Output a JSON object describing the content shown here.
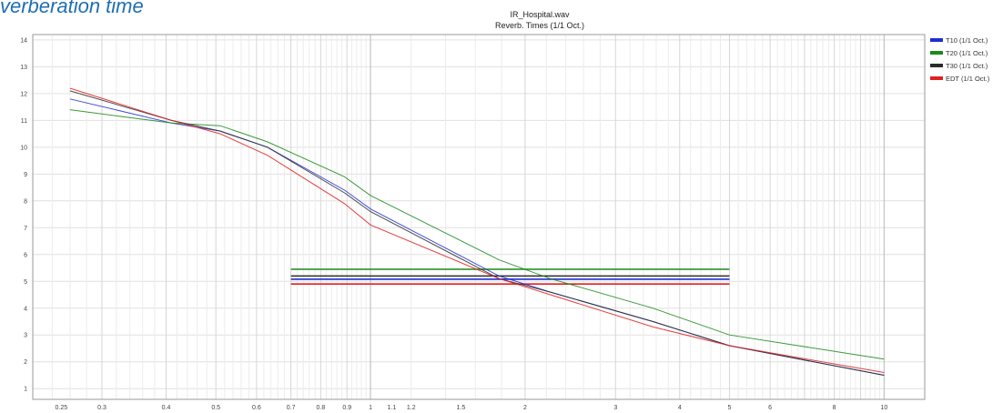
{
  "heading": "verberation time",
  "chart_data": {
    "type": "line",
    "title": "IR_Hospital.wav",
    "subtitle": "Reverb. Times (1/1 Oct.)",
    "xscale": "log",
    "xlabel": "",
    "ylabel": "",
    "xlim": [
      0.22,
      12
    ],
    "ylim": [
      0.6,
      14.2
    ],
    "yticks": [
      1,
      2,
      3,
      4,
      5,
      6,
      7,
      8,
      9,
      10,
      11,
      12,
      13,
      14
    ],
    "xtick_labels": [
      {
        "v": 0.25,
        "t": "0.25"
      },
      {
        "v": 0.3,
        "t": "0.3"
      },
      {
        "v": 0.4,
        "t": "0.4"
      },
      {
        "v": 0.5,
        "t": "0.5"
      },
      {
        "v": 0.6,
        "t": "0.6"
      },
      {
        "v": 0.7,
        "t": "0.7"
      },
      {
        "v": 0.8,
        "t": "0.8"
      },
      {
        "v": 0.9,
        "t": "0.9"
      },
      {
        "v": 1,
        "t": "1"
      },
      {
        "v": 1.1,
        "t": "1.1"
      },
      {
        "v": 1.2,
        "t": "1.2"
      },
      {
        "v": 1.5,
        "t": "1.5"
      },
      {
        "v": 2,
        "t": "2"
      },
      {
        "v": 3,
        "t": "3"
      },
      {
        "v": 4,
        "t": "4"
      },
      {
        "v": 5,
        "t": "5"
      },
      {
        "v": 6,
        "t": "6"
      },
      {
        "v": 8,
        "t": "8"
      },
      {
        "v": 10,
        "t": "10"
      }
    ],
    "grid": true,
    "legend_position": "right",
    "series": [
      {
        "name": "T10 (1/1 Oct.)",
        "color": "#1f2fd0",
        "x": [
          0.26,
          0.41,
          0.51,
          0.63,
          0.89,
          1.0,
          1.78,
          2.24,
          3.55,
          5.0,
          10.0
        ],
        "y": [
          11.8,
          10.9,
          10.6,
          10.0,
          8.4,
          7.7,
          5.2,
          4.6,
          3.5,
          2.6,
          1.5
        ]
      },
      {
        "name": "T20 (1/1 Oct.)",
        "color": "#1a8a1a",
        "x": [
          0.26,
          0.41,
          0.51,
          0.63,
          0.89,
          1.0,
          1.78,
          2.24,
          3.55,
          5.0,
          10.0
        ],
        "y": [
          11.4,
          10.9,
          10.8,
          10.2,
          8.9,
          8.2,
          5.8,
          5.1,
          4.0,
          3.0,
          2.1
        ]
      },
      {
        "name": "T30 (1/1 Oct.)",
        "color": "#2b2b2b",
        "x": [
          0.26,
          0.41,
          0.51,
          0.63,
          0.89,
          1.0,
          1.78,
          2.24,
          3.55,
          5.0,
          10.0
        ],
        "y": [
          12.1,
          11.0,
          10.6,
          10.0,
          8.3,
          7.6,
          5.1,
          4.6,
          3.5,
          2.6,
          1.5
        ]
      },
      {
        "name": "EDT (1/1 Oct.)",
        "color": "#e02020",
        "x": [
          0.26,
          0.41,
          0.51,
          0.63,
          0.89,
          1.0,
          1.78,
          2.24,
          3.55,
          5.0,
          10.0
        ],
        "y": [
          12.2,
          11.0,
          10.5,
          9.7,
          7.9,
          7.1,
          5.1,
          4.5,
          3.3,
          2.6,
          1.6
        ]
      }
    ],
    "overall_lines": [
      {
        "series": "T20 (1/1 Oct.)",
        "color": "#1a8a1a",
        "x": [
          0.7,
          5.0
        ],
        "y": 5.45
      },
      {
        "series": "T30 (1/1 Oct.)",
        "color": "#2b2b2b",
        "x": [
          0.7,
          5.0
        ],
        "y": 5.2
      },
      {
        "series": "T10 (1/1 Oct.)",
        "color": "#1f2fd0",
        "x": [
          0.7,
          5.0
        ],
        "y": 5.08
      },
      {
        "series": "EDT (1/1 Oct.)",
        "color": "#e02020",
        "x": [
          0.7,
          5.0
        ],
        "y": 4.9
      }
    ]
  }
}
